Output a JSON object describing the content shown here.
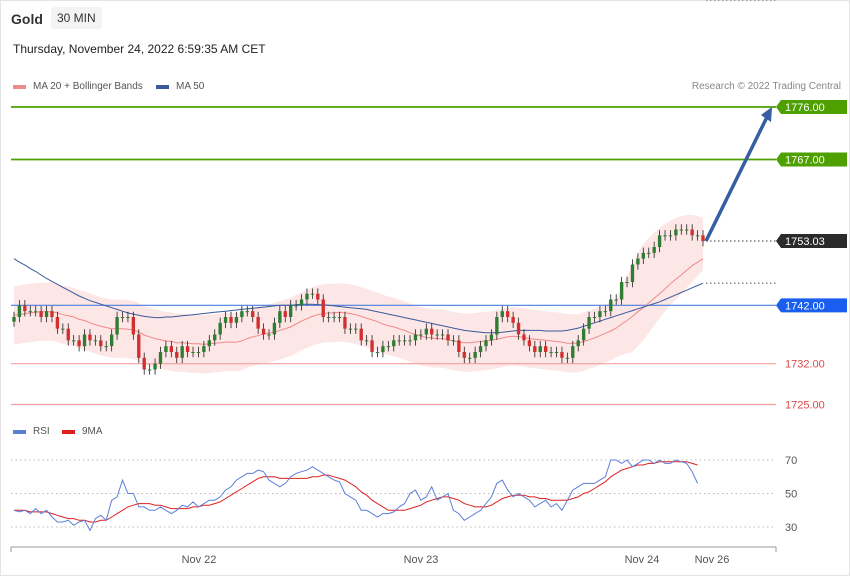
{
  "header": {
    "instrument": "Gold",
    "timeframe": "30 MIN",
    "datetime": "Thursday, November 24, 2022 6:59:35 AM CET",
    "credit": "Research © 2022 Trading Central"
  },
  "legend": {
    "price": [
      {
        "label": "MA 20 + Bollinger Bands",
        "color": "#f08a8a"
      },
      {
        "label": "MA 50",
        "color": "#3a5a9c"
      }
    ],
    "rsi": [
      {
        "label": "RSI",
        "color": "#5b7fd9"
      },
      {
        "label": "9MA",
        "color": "#e02020"
      }
    ]
  },
  "colors": {
    "bull_candle": "#2e7d32",
    "bear_candle": "#d32f2f",
    "resistance": "#4ea000",
    "support": "#f4a0a0",
    "pivot": "#1a5ef0",
    "arrow": "#355fa0",
    "bollinger_fill": "#fde3e3"
  },
  "chart_data": [
    {
      "type": "candlestick",
      "panel": "price",
      "x_ticks": [
        "Nov 22",
        "Nov 23",
        "Nov 24",
        "Nov 26"
      ],
      "ylim": [
        1722,
        1779
      ],
      "levels": [
        {
          "value": 1776.0,
          "label": "1776.00",
          "kind": "resistance"
        },
        {
          "value": 1767.0,
          "label": "1767.00",
          "kind": "resistance"
        },
        {
          "value": 1753.03,
          "label": "1753.03",
          "kind": "last"
        },
        {
          "value": 1742.0,
          "label": "1742.00",
          "kind": "pivot"
        },
        {
          "value": 1732.0,
          "label": "1732.00",
          "kind": "support"
        },
        {
          "value": 1725.0,
          "label": "1725.00",
          "kind": "support"
        }
      ],
      "close": [
        1740,
        1742,
        1741,
        1741,
        1741,
        1740,
        1741,
        1740,
        1738,
        1738,
        1736,
        1736,
        1735,
        1737,
        1736,
        1736,
        1735,
        1735,
        1737,
        1740,
        1740,
        1740,
        1737,
        1733,
        1731,
        1731,
        1732,
        1734,
        1735,
        1734,
        1733,
        1735,
        1734,
        1734,
        1734,
        1735,
        1736,
        1737,
        1739,
        1740,
        1739,
        1740,
        1741,
        1741,
        1740,
        1738,
        1737,
        1737,
        1739,
        1741,
        1740,
        1742,
        1742,
        1743,
        1744,
        1744,
        1743,
        1740,
        1740,
        1740,
        1740,
        1738,
        1738,
        1738,
        1736,
        1736,
        1734,
        1734,
        1735,
        1735,
        1736,
        1736,
        1736,
        1736,
        1737,
        1737,
        1738,
        1737,
        1737,
        1737,
        1736,
        1736,
        1734,
        1733,
        1733,
        1734,
        1735,
        1736,
        1737,
        1740,
        1741,
        1740,
        1739,
        1737,
        1736,
        1735,
        1734,
        1735,
        1734,
        1734,
        1734,
        1733,
        1733,
        1735,
        1736,
        1738,
        1740,
        1740,
        1741,
        1741,
        1743,
        1743,
        1746,
        1746,
        1749,
        1750,
        1751,
        1751,
        1752,
        1754,
        1754,
        1754,
        1755,
        1755,
        1755,
        1754,
        1754,
        1753
      ],
      "ma20": [
        1740.3,
        1740.4,
        1740.6,
        1740.7,
        1740.8,
        1740.9,
        1740.9,
        1740.9,
        1740.7,
        1740.4,
        1740.2,
        1740.0,
        1739.6,
        1739.4,
        1739.0,
        1738.7,
        1738.4,
        1738.2,
        1738.0,
        1738.0,
        1738.0,
        1737.9,
        1737.8,
        1737.4,
        1736.9,
        1736.6,
        1736.3,
        1736.1,
        1735.9,
        1735.8,
        1735.6,
        1735.6,
        1735.5,
        1735.4,
        1735.4,
        1735.3,
        1735.4,
        1735.5,
        1735.6,
        1735.7,
        1735.7,
        1735.7,
        1735.9,
        1736.3,
        1736.6,
        1736.8,
        1737.1,
        1737.2,
        1737.4,
        1737.7,
        1738.0,
        1738.3,
        1738.8,
        1739.3,
        1739.7,
        1740.1,
        1740.4,
        1740.6,
        1740.7,
        1740.7,
        1740.8,
        1740.7,
        1740.6,
        1740.4,
        1740.1,
        1739.8,
        1739.5,
        1739.2,
        1738.8,
        1738.5,
        1738.3,
        1738.0,
        1737.7,
        1737.3,
        1737.0,
        1736.7,
        1736.5,
        1736.4,
        1736.3,
        1736.3,
        1736.1,
        1735.9,
        1735.7,
        1735.6,
        1735.6,
        1735.7,
        1735.8,
        1735.9,
        1736.0,
        1736.2,
        1736.4,
        1736.6,
        1736.7,
        1736.6,
        1736.5,
        1736.3,
        1736.2,
        1736.1,
        1736.0,
        1735.9,
        1735.8,
        1735.7,
        1735.5,
        1735.5,
        1735.5,
        1735.8,
        1736.1,
        1736.4,
        1736.8,
        1737.2,
        1737.6,
        1738.1,
        1738.8,
        1739.4,
        1740.1,
        1740.9,
        1741.6,
        1742.4,
        1743.2,
        1744.0,
        1744.8,
        1745.7,
        1746.5,
        1747.2,
        1748.0,
        1748.8,
        1749.4,
        1750.0
      ],
      "bollinger_upper": [
        1745.3,
        1745.4,
        1745.6,
        1745.7,
        1745.8,
        1745.9,
        1745.9,
        1745.9,
        1745.7,
        1745.4,
        1745.2,
        1745.0,
        1744.6,
        1744.4,
        1744.0,
        1743.7,
        1743.4,
        1743.2,
        1743.0,
        1743.0,
        1743.0,
        1742.9,
        1742.8,
        1742.4,
        1741.9,
        1741.6,
        1741.3,
        1741.1,
        1740.9,
        1740.8,
        1740.6,
        1740.6,
        1740.5,
        1740.4,
        1740.4,
        1740.3,
        1740.4,
        1740.5,
        1740.6,
        1740.7,
        1740.7,
        1740.7,
        1740.9,
        1741.3,
        1741.6,
        1741.8,
        1742.1,
        1742.2,
        1742.4,
        1742.7,
        1743.0,
        1743.3,
        1743.8,
        1744.3,
        1744.7,
        1745.1,
        1745.4,
        1745.6,
        1745.7,
        1745.7,
        1745.8,
        1745.7,
        1745.6,
        1745.4,
        1745.1,
        1744.8,
        1744.5,
        1744.2,
        1743.8,
        1743.5,
        1743.3,
        1743.0,
        1742.7,
        1742.3,
        1742.0,
        1741.7,
        1741.5,
        1741.4,
        1741.3,
        1741.3,
        1741.1,
        1740.9,
        1740.7,
        1740.6,
        1740.6,
        1740.7,
        1740.8,
        1740.9,
        1741.0,
        1741.2,
        1741.4,
        1741.6,
        1741.7,
        1741.6,
        1741.5,
        1741.3,
        1741.2,
        1741.1,
        1741.0,
        1740.9,
        1740.8,
        1740.7,
        1740.5,
        1740.5,
        1740.5,
        1740.8,
        1741.1,
        1741.4,
        1741.8,
        1742.2,
        1742.6,
        1743.1,
        1745.0,
        1747.0,
        1749.0,
        1751.0,
        1752.5,
        1753.5,
        1754.5,
        1755.3,
        1756.0,
        1756.5,
        1757.0,
        1757.3,
        1757.5,
        1757.5,
        1757.3,
        1757.0
      ],
      "bollinger_lower": [
        1735.3,
        1735.4,
        1735.6,
        1735.7,
        1735.8,
        1735.9,
        1735.9,
        1735.9,
        1735.7,
        1735.4,
        1735.2,
        1735.0,
        1734.6,
        1734.4,
        1734.0,
        1733.7,
        1733.4,
        1733.2,
        1733.0,
        1733.0,
        1733.0,
        1732.9,
        1732.8,
        1732.4,
        1731.9,
        1731.6,
        1731.3,
        1731.1,
        1730.9,
        1730.8,
        1730.6,
        1730.6,
        1730.5,
        1730.4,
        1730.4,
        1730.3,
        1730.4,
        1730.5,
        1730.6,
        1730.7,
        1730.7,
        1730.7,
        1730.9,
        1731.3,
        1731.6,
        1731.8,
        1732.1,
        1732.2,
        1732.4,
        1732.7,
        1733.0,
        1733.3,
        1733.8,
        1734.3,
        1734.7,
        1735.1,
        1735.4,
        1735.6,
        1735.7,
        1735.7,
        1735.8,
        1735.7,
        1735.6,
        1735.4,
        1735.1,
        1734.8,
        1734.5,
        1734.2,
        1733.8,
        1733.5,
        1733.3,
        1733.0,
        1732.7,
        1732.3,
        1732.0,
        1731.7,
        1731.5,
        1731.4,
        1731.3,
        1731.3,
        1731.1,
        1730.9,
        1730.7,
        1730.6,
        1730.6,
        1730.7,
        1730.8,
        1730.9,
        1731.0,
        1731.2,
        1731.4,
        1731.6,
        1731.7,
        1731.6,
        1731.5,
        1731.3,
        1731.2,
        1731.1,
        1731.0,
        1730.9,
        1730.8,
        1730.7,
        1730.5,
        1730.5,
        1730.5,
        1730.8,
        1731.1,
        1731.4,
        1731.8,
        1732.2,
        1732.6,
        1733.1,
        1733.5,
        1733.8,
        1734.0,
        1735.0,
        1736.0,
        1737.3,
        1738.6,
        1739.8,
        1741.0,
        1742.0,
        1743.0,
        1744.0,
        1745.0,
        1746.0,
        1747.0,
        1748.0
      ],
      "ma50": [
        1750,
        1749.4,
        1748.9,
        1748.3,
        1747.8,
        1747.2,
        1746.6,
        1746.1,
        1745.6,
        1745.1,
        1744.6,
        1744.1,
        1743.6,
        1743.2,
        1742.8,
        1742.5,
        1742.2,
        1741.9,
        1741.6,
        1741.3,
        1741.0,
        1740.7,
        1740.5,
        1740.3,
        1740.1,
        1740.0,
        1739.9,
        1739.9,
        1740.0,
        1740.0,
        1740.1,
        1740.2,
        1740.3,
        1740.4,
        1740.5,
        1740.6,
        1740.7,
        1740.8,
        1740.9,
        1741.0,
        1741.1,
        1741.2,
        1741.3,
        1741.4,
        1741.5,
        1741.6,
        1741.7,
        1741.8,
        1741.9,
        1742.0,
        1742.0,
        1742.0,
        1742.1,
        1742.2,
        1742.2,
        1742.2,
        1742.1,
        1742.1,
        1742.0,
        1741.9,
        1741.8,
        1741.7,
        1741.6,
        1741.5,
        1741.4,
        1741.3,
        1741.1,
        1740.9,
        1740.7,
        1740.5,
        1740.3,
        1740.1,
        1739.9,
        1739.7,
        1739.5,
        1739.3,
        1739.1,
        1738.9,
        1738.7,
        1738.5,
        1738.3,
        1738.1,
        1737.9,
        1737.7,
        1737.6,
        1737.5,
        1737.4,
        1737.3,
        1737.3,
        1737.3,
        1737.4,
        1737.5,
        1737.6,
        1737.7,
        1737.7,
        1737.7,
        1737.7,
        1737.7,
        1737.6,
        1737.6,
        1737.6,
        1737.6,
        1737.7,
        1737.9,
        1738.1,
        1738.4,
        1738.7,
        1739.0,
        1739.3,
        1739.6,
        1739.9,
        1740.2,
        1740.5,
        1740.8,
        1741.1,
        1741.4,
        1741.7,
        1742.0,
        1742.3,
        1742.6,
        1743.0,
        1743.4,
        1743.8,
        1744.2,
        1744.6,
        1745.0,
        1745.4,
        1745.8
      ]
    },
    {
      "type": "line",
      "panel": "rsi",
      "y_ticks": [
        70,
        50,
        30
      ],
      "ylim": [
        19,
        78
      ],
      "series": [
        {
          "name": "RSI",
          "values": [
            40,
            39,
            40,
            38,
            41,
            38,
            40,
            36,
            33,
            33,
            34,
            31,
            33,
            34,
            28,
            35,
            37,
            34,
            46,
            48,
            58,
            50,
            50,
            42,
            42,
            40,
            40,
            42,
            40,
            38,
            40,
            43,
            42,
            45,
            42,
            44,
            46,
            46,
            48,
            52,
            54,
            58,
            60,
            62,
            62,
            64,
            63,
            58,
            56,
            54,
            56,
            60,
            62,
            63,
            64,
            66,
            64,
            62,
            60,
            58,
            57,
            50,
            48,
            46,
            40,
            40,
            38,
            36,
            38,
            38,
            39,
            42,
            44,
            50,
            52,
            46,
            48,
            54,
            46,
            48,
            50,
            40,
            38,
            34,
            36,
            38,
            40,
            44,
            48,
            56,
            58,
            52,
            48,
            50,
            48,
            46,
            42,
            44,
            46,
            42,
            44,
            40,
            46,
            52,
            54,
            56,
            56,
            56,
            58,
            60,
            70,
            70,
            68,
            70,
            66,
            68,
            70,
            70,
            68,
            70,
            68,
            68,
            70,
            69,
            68,
            63,
            56
          ]
        },
        {
          "name": "9MA",
          "values": [
            40,
            40,
            40,
            39,
            39,
            39,
            39,
            38,
            37,
            36,
            35,
            35,
            34,
            34,
            33,
            33,
            34,
            34,
            36,
            38,
            40,
            42,
            43,
            44,
            44,
            44,
            43,
            43,
            42,
            41,
            41,
            41,
            41,
            42,
            42,
            43,
            43,
            44,
            45,
            47,
            49,
            51,
            53,
            55,
            57,
            59,
            60,
            60,
            60,
            59,
            59,
            59,
            59,
            59,
            59,
            60,
            60,
            61,
            61,
            60,
            59,
            58,
            56,
            54,
            51,
            49,
            46,
            44,
            42,
            40,
            40,
            40,
            40,
            41,
            42,
            43,
            45,
            46,
            47,
            48,
            48,
            47,
            46,
            44,
            43,
            42,
            42,
            42,
            43,
            45,
            47,
            48,
            49,
            49,
            49,
            48,
            48,
            47,
            47,
            46,
            46,
            46,
            46,
            47,
            48,
            50,
            51,
            53,
            55,
            57,
            60,
            62,
            64,
            65,
            66,
            67,
            67,
            68,
            68,
            69,
            69,
            69,
            69,
            69,
            69,
            68,
            67
          ]
        }
      ]
    }
  ]
}
